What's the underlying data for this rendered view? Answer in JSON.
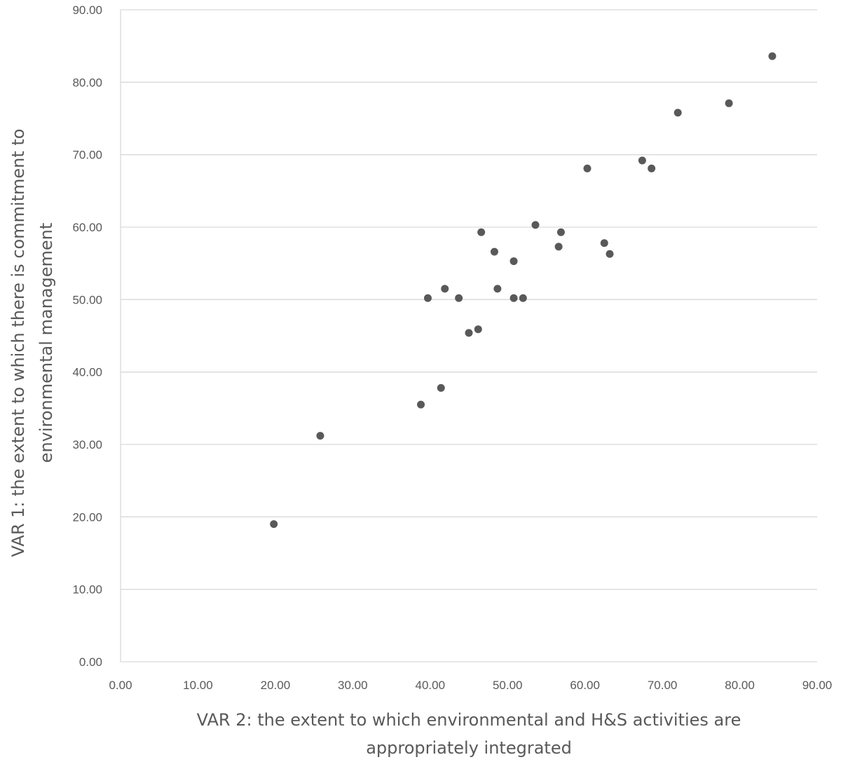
{
  "chart_data": {
    "type": "scatter",
    "title": "",
    "xlabel_lines": [
      "VAR 2: the extent to which environmental and H&S activities are",
      "appropriately integrated"
    ],
    "ylabel_lines": [
      "VAR 1: the extent to which there is commitment to",
      "environmental management"
    ],
    "xlim": [
      0,
      90
    ],
    "ylim": [
      0,
      90
    ],
    "x_ticks": [
      "0.00",
      "10.00",
      "20.00",
      "30.00",
      "40.00",
      "50.00",
      "60.00",
      "70.00",
      "80.00",
      "90.00"
    ],
    "y_ticks": [
      "0.00",
      "10.00",
      "20.00",
      "30.00",
      "40.00",
      "50.00",
      "60.00",
      "70.00",
      "80.00",
      "90.00"
    ],
    "grid": "horizontal",
    "legend": "none",
    "colors": {
      "marker": "#595959",
      "gridline": "#d9d9d9",
      "axis_text": "#595959"
    },
    "points": [
      {
        "x": 19.8,
        "y": 19.0
      },
      {
        "x": 25.8,
        "y": 31.2
      },
      {
        "x": 38.8,
        "y": 35.5
      },
      {
        "x": 41.4,
        "y": 37.8
      },
      {
        "x": 39.7,
        "y": 50.2
      },
      {
        "x": 41.9,
        "y": 51.5
      },
      {
        "x": 43.7,
        "y": 50.2
      },
      {
        "x": 45.0,
        "y": 45.4
      },
      {
        "x": 46.2,
        "y": 45.9
      },
      {
        "x": 46.6,
        "y": 59.3
      },
      {
        "x": 48.3,
        "y": 56.6
      },
      {
        "x": 48.7,
        "y": 51.5
      },
      {
        "x": 50.8,
        "y": 55.3
      },
      {
        "x": 50.8,
        "y": 50.2
      },
      {
        "x": 52.0,
        "y": 50.2
      },
      {
        "x": 53.6,
        "y": 60.3
      },
      {
        "x": 56.6,
        "y": 57.3
      },
      {
        "x": 56.9,
        "y": 59.3
      },
      {
        "x": 60.3,
        "y": 68.1
      },
      {
        "x": 62.5,
        "y": 57.8
      },
      {
        "x": 63.2,
        "y": 56.3
      },
      {
        "x": 67.4,
        "y": 69.2
      },
      {
        "x": 68.6,
        "y": 68.1
      },
      {
        "x": 72.0,
        "y": 75.8
      },
      {
        "x": 78.6,
        "y": 77.1
      },
      {
        "x": 84.2,
        "y": 83.6
      }
    ]
  }
}
